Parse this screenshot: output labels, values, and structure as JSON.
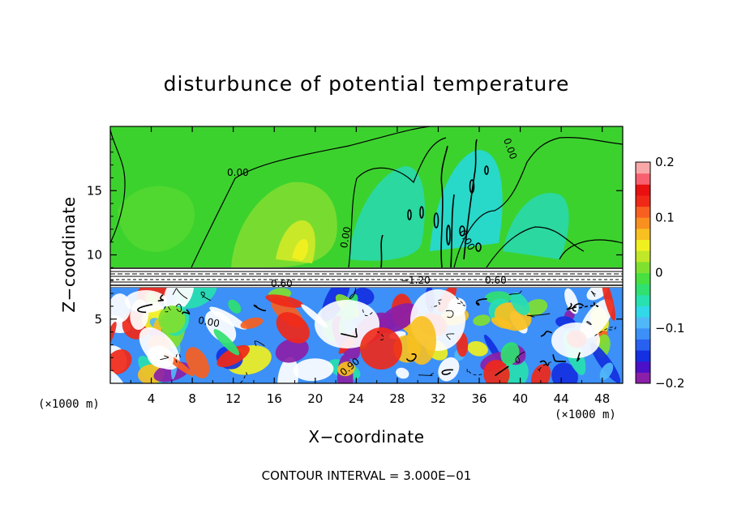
{
  "chart_data": {
    "type": "heatmap",
    "title": "disturbunce of potential temperature",
    "xlabel": "X−coordinate",
    "ylabel": "Z−coordinate",
    "x_unit": "(×1000 m)",
    "x_unit_right": "(×1000 m)",
    "x_range": [
      0,
      50
    ],
    "y_range": [
      0,
      20
    ],
    "x_ticks": [
      {
        "value": 4,
        "label": "4"
      },
      {
        "value": 8,
        "label": "8"
      },
      {
        "value": 12,
        "label": "12"
      },
      {
        "value": 16,
        "label": "16"
      },
      {
        "value": 20,
        "label": "20"
      },
      {
        "value": 24,
        "label": "24"
      },
      {
        "value": 28,
        "label": "28"
      },
      {
        "value": 32,
        "label": "32"
      },
      {
        "value": 36,
        "label": "36"
      },
      {
        "value": 40,
        "label": "40"
      },
      {
        "value": 44,
        "label": "44"
      },
      {
        "value": 48,
        "label": "48"
      }
    ],
    "y_ticks": [
      {
        "value": 5,
        "label": "5"
      },
      {
        "value": 10,
        "label": "10"
      },
      {
        "value": 15,
        "label": "15"
      }
    ],
    "colorbar": {
      "range": [
        -0.2,
        0.2
      ],
      "labels": [
        {
          "value": 0.2,
          "label": "0.2"
        },
        {
          "value": 0.1,
          "label": "0.1"
        },
        {
          "value": 0,
          "label": "0"
        },
        {
          "value": -0.1,
          "label": "−0.1"
        },
        {
          "value": -0.2,
          "label": "−0.2"
        }
      ],
      "colors": [
        "#8b1fa8",
        "#4b10c8",
        "#1430e0",
        "#2860f0",
        "#3c90f8",
        "#50b8f8",
        "#30d8e8",
        "#28e0b0",
        "#30e070",
        "#48e040",
        "#80e030",
        "#c0e828",
        "#f0f020",
        "#f8c020",
        "#f89020",
        "#f86020",
        "#f02818",
        "#e81010",
        "#f86070",
        "#f8a8a8"
      ]
    },
    "contour_labels": [
      "0.00",
      "0.00",
      "0.00",
      "0.00",
      "0.00",
      "0.60",
      "0.60",
      "−1.20",
      "0.90"
    ],
    "note": "CONTOUR INTERVAL = 3.000E−01"
  }
}
